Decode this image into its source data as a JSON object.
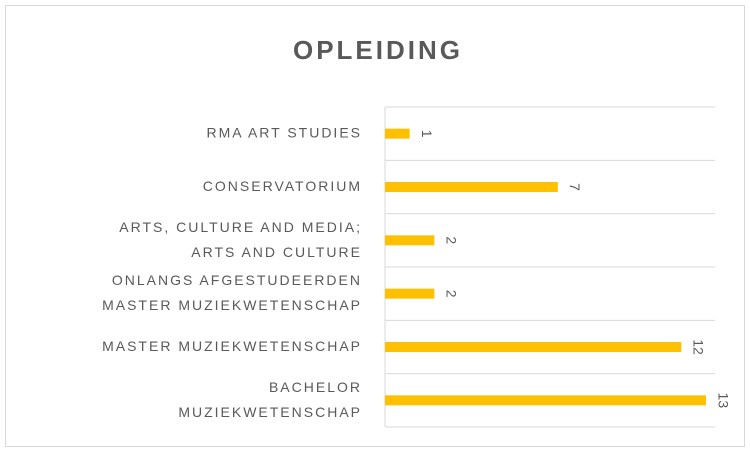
{
  "chart_data": {
    "type": "bar",
    "orientation": "horizontal",
    "title": "OPLEIDING",
    "categories": [
      "RMA ART STUDIES",
      "CONSERVATORIUM",
      "ARTS, CULTURE AND MEDIA;\nARTS AND CULTURE",
      "ONLANGS AFGESTUDEERDEN\nMASTER MUZIEKWETENSCHAP",
      "MASTER MUZIEKWETENSCHAP",
      "BACHELOR\nMUZIEKWETENSCHAP"
    ],
    "values": [
      1,
      7,
      2,
      2,
      12,
      13
    ],
    "color": "#ffc000",
    "grid": true
  }
}
